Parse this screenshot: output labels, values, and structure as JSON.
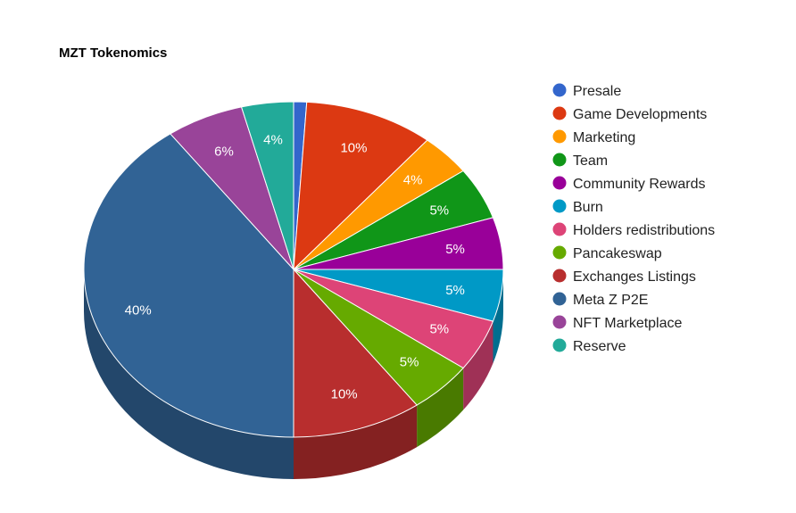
{
  "chart_data": {
    "type": "pie",
    "title": "MZT Tokenomics",
    "legend_position": "right",
    "slices": [
      {
        "label": "Presale",
        "value": 1,
        "color": "#3366cc",
        "display": ""
      },
      {
        "label": "Game Developments",
        "value": 10,
        "color": "#dc3912",
        "display": "10%"
      },
      {
        "label": "Marketing",
        "value": 4,
        "color": "#ff9900",
        "display": "4%"
      },
      {
        "label": "Team",
        "value": 5,
        "color": "#109618",
        "display": "5%"
      },
      {
        "label": "Community Rewards",
        "value": 5,
        "color": "#990099",
        "display": "5%"
      },
      {
        "label": "Burn",
        "value": 5,
        "color": "#0099c6",
        "display": "5%"
      },
      {
        "label": "Holders redistributions",
        "value": 5,
        "color": "#dd4477",
        "display": "5%"
      },
      {
        "label": "Pancakeswap",
        "value": 5,
        "color": "#66aa00",
        "display": "5%"
      },
      {
        "label": "Exchanges Listings",
        "value": 10,
        "color": "#b82e2e",
        "display": "10%"
      },
      {
        "label": "Meta Z P2E",
        "value": 40,
        "color": "#316395",
        "display": "40%"
      },
      {
        "label": "NFT Marketplace",
        "value": 6,
        "color": "#994499",
        "display": "6%"
      },
      {
        "label": "Reserve",
        "value": 4,
        "color": "#22aa99",
        "display": "4%"
      }
    ]
  }
}
